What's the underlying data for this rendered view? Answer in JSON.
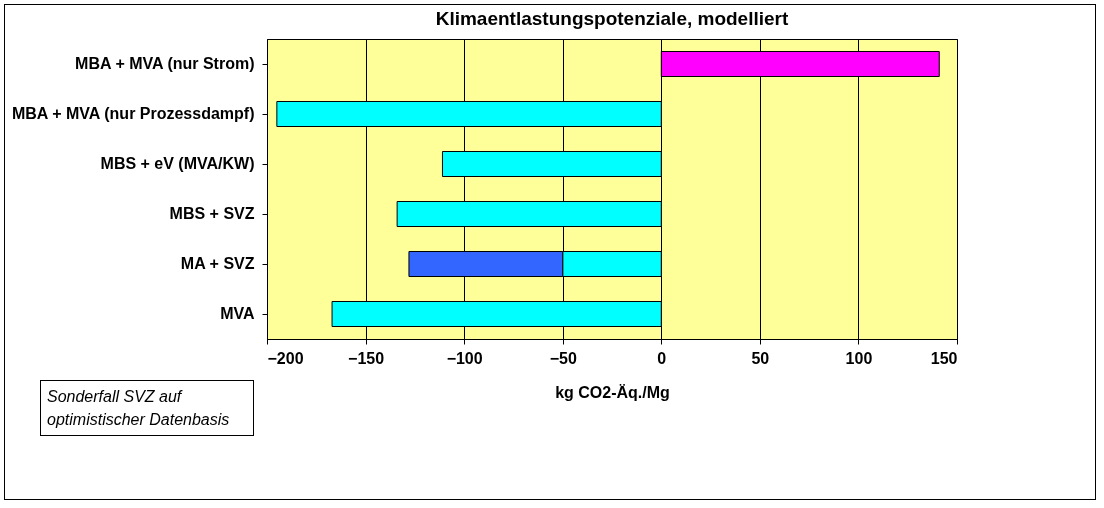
{
  "chart_data": {
    "type": "bar",
    "orientation": "horizontal",
    "stacked": true,
    "title": "Klimaentlastungspotenziale, modelliert",
    "xlabel": "kg CO2-Äq./Mg",
    "categories": [
      "MBA + MVA (nur Strom)",
      "MBA + MVA (nur Prozessdampf)",
      "MBS + eV (MVA/KW)",
      "MBS + SVZ",
      "MA + SVZ",
      "MVA"
    ],
    "series": [
      {
        "colors": [
          "#ff00ff",
          "#00ffff",
          "#00ffff",
          "#00ffff",
          "#00ffff",
          "#00ffff"
        ],
        "values": [
          141,
          -195,
          -111,
          -134,
          -50,
          -167
        ]
      },
      {
        "color": "#3366ff",
        "values": [
          null,
          null,
          null,
          null,
          -78,
          null
        ]
      }
    ],
    "xlim": [
      -200,
      150
    ],
    "xticks": [
      -200,
      -150,
      -100,
      -50,
      0,
      50,
      100,
      150
    ],
    "grid": "x",
    "annotations": [
      "Sonderfall SVZ auf optimistischer Datenbasis"
    ]
  }
}
